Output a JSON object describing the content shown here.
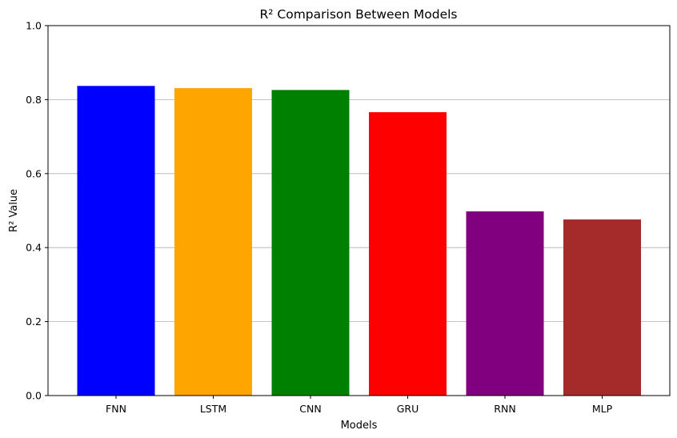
{
  "chart_data": {
    "type": "bar",
    "title": "R² Comparison Between Models",
    "xlabel": "Models",
    "ylabel": "R² Value",
    "categories": [
      "FNN",
      "LSTM",
      "CNN",
      "GRU",
      "RNN",
      "MLP"
    ],
    "values": [
      0.837,
      0.831,
      0.826,
      0.766,
      0.498,
      0.476
    ],
    "colors": [
      "#0000ff",
      "#ffa500",
      "#008000",
      "#ff0000",
      "#800080",
      "#a52a2a"
    ],
    "ylim": [
      0,
      1
    ],
    "yticks": [
      "0.0",
      "0.2",
      "0.4",
      "0.6",
      "0.8",
      "1.0"
    ],
    "grid": "y-axis",
    "legend": "none"
  }
}
